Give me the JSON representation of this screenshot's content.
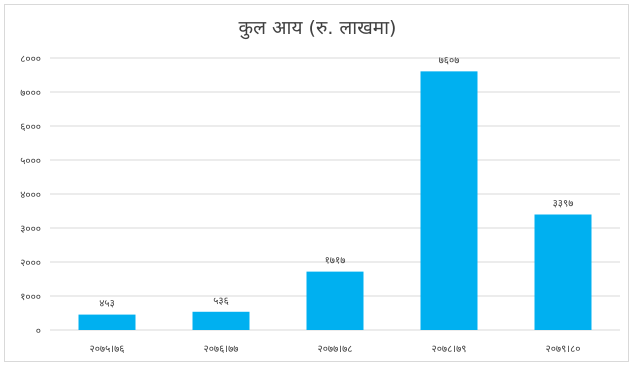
{
  "chart_data": {
    "type": "bar",
    "title": "कुल आय (रु. लाखमा)",
    "categories": [
      "२०७५।७६",
      "२०७६।७७",
      "२०७७।७८",
      "२०७८।७९",
      "२०७९।८०"
    ],
    "values": [
      453,
      536,
      1717,
      7607,
      3397
    ],
    "value_labels": [
      "४५३",
      "५३६",
      "१७१७",
      "७६०७",
      "३३९७"
    ],
    "ylim": [
      0,
      8000
    ],
    "yticks": [
      0,
      1000,
      2000,
      3000,
      4000,
      5000,
      6000,
      7000,
      8000
    ],
    "ytick_labels": [
      "०",
      "१०००",
      "२०००",
      "३०००",
      "४०००",
      "५०००",
      "६०००",
      "७०००",
      "८०००"
    ],
    "xlabel": "",
    "ylabel": "",
    "grid": true,
    "bar_color": "#00b0f0",
    "grid_color": "#d9d9d9"
  }
}
